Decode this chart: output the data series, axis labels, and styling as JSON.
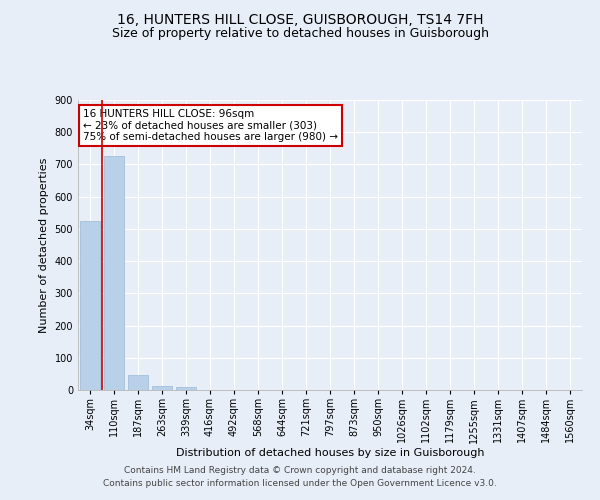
{
  "title": "16, HUNTERS HILL CLOSE, GUISBOROUGH, TS14 7FH",
  "subtitle": "Size of property relative to detached houses in Guisborough",
  "xlabel": "Distribution of detached houses by size in Guisborough",
  "ylabel": "Number of detached properties",
  "categories": [
    "34sqm",
    "110sqm",
    "187sqm",
    "263sqm",
    "339sqm",
    "416sqm",
    "492sqm",
    "568sqm",
    "644sqm",
    "721sqm",
    "797sqm",
    "873sqm",
    "950sqm",
    "1026sqm",
    "1102sqm",
    "1179sqm",
    "1255sqm",
    "1331sqm",
    "1407sqm",
    "1484sqm",
    "1560sqm"
  ],
  "values": [
    525,
    727,
    48,
    12,
    10,
    0,
    0,
    0,
    0,
    0,
    0,
    0,
    0,
    0,
    0,
    0,
    0,
    0,
    0,
    0,
    0
  ],
  "bar_color": "#b8d0e8",
  "bar_edge_color": "#9ab8d8",
  "annotation_box_text": "16 HUNTERS HILL CLOSE: 96sqm\n← 23% of detached houses are smaller (303)\n75% of semi-detached houses are larger (980) →",
  "annotation_box_color": "#ffffff",
  "annotation_box_edge_color": "#cc0000",
  "vline_color": "#cc0000",
  "ylim": [
    0,
    900
  ],
  "yticks": [
    0,
    100,
    200,
    300,
    400,
    500,
    600,
    700,
    800,
    900
  ],
  "footnote": "Contains HM Land Registry data © Crown copyright and database right 2024.\nContains public sector information licensed under the Open Government Licence v3.0.",
  "bg_color": "#e8eef8",
  "plot_bg_color": "#e8eef8",
  "grid_color": "#ffffff",
  "title_fontsize": 10,
  "subtitle_fontsize": 9,
  "axis_label_fontsize": 8,
  "tick_fontsize": 7,
  "footnote_fontsize": 6.5,
  "annotation_fontsize": 7.5
}
